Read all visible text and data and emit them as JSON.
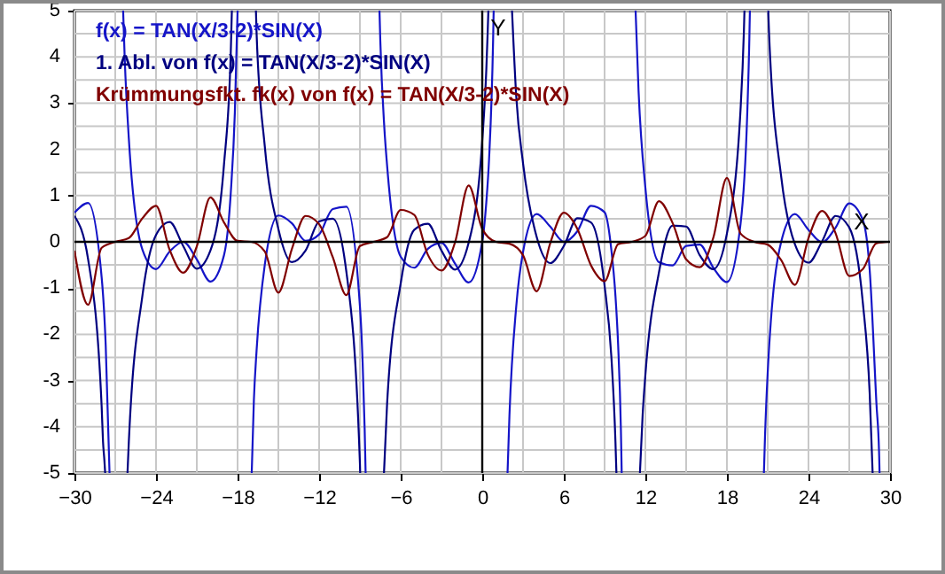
{
  "chart_data": {
    "type": "line",
    "xlabel": "X",
    "ylabel": "Y",
    "xlim": [
      -30,
      30
    ],
    "ylim": [
      -5,
      5
    ],
    "xticks": [
      -30,
      {
        "value": -27,
        "label": null
      },
      -24,
      {
        "value": -21,
        "label": null
      },
      -18,
      {
        "value": -15,
        "label": null
      },
      -12,
      {
        "value": -9,
        "label": null
      },
      -6,
      {
        "value": -3,
        "label": null
      },
      0,
      {
        "value": 3,
        "label": null
      },
      6,
      {
        "value": 9,
        "label": null
      },
      12,
      {
        "value": 15,
        "label": null
      },
      18,
      {
        "value": 21,
        "label": null
      },
      24,
      {
        "value": 27,
        "label": null
      },
      30
    ],
    "yticks": [
      -5,
      {
        "value": -4.5,
        "label": null
      },
      -4,
      {
        "value": -3.5,
        "label": null
      },
      -3,
      {
        "value": -2.5,
        "label": null
      },
      -2,
      {
        "value": -1.5,
        "label": null
      },
      -1,
      {
        "value": -0.5,
        "label": null
      },
      0,
      {
        "value": 0.5,
        "label": null
      },
      1,
      {
        "value": 1.5,
        "label": null
      },
      2,
      {
        "value": 2.5,
        "label": null
      },
      3,
      {
        "value": 3.5,
        "label": null
      },
      4,
      {
        "value": 4.5,
        "label": null
      },
      5
    ],
    "grid": true,
    "legend": "top left",
    "marker": "none",
    "line_style": "solid",
    "series": [
      {
        "name": "f(x) = TAN(X/3-2)*SIN(X)",
        "color": "#1515c8",
        "x": [
          -30,
          -29,
          -28,
          -27.7,
          -27.42,
          -27,
          -26.42,
          -26.3,
          -26,
          -25,
          -24,
          -23,
          -22,
          -21,
          -20,
          -19,
          -18.5,
          -18.2,
          -18,
          -17.5,
          -16.96,
          -16.8,
          -16.6,
          -16,
          -15,
          -14,
          -13,
          -12,
          -11,
          -10,
          -9,
          -8.8,
          -8.65,
          -8.58,
          -8.1,
          -7.56,
          -7.5,
          -7.2,
          -7,
          -6,
          -5,
          -4,
          -3,
          -2,
          -1,
          0,
          0.3,
          0.5,
          0.8,
          0.84,
          1.3,
          1.86,
          2,
          2.5,
          3,
          4,
          5,
          6,
          7,
          8,
          9,
          9.5,
          9.8,
          10,
          10.2,
          10.26,
          10.7,
          11.28,
          11.5,
          12,
          13,
          14,
          15,
          16,
          17,
          18,
          19,
          19.5,
          19.65,
          19.69,
          20.1,
          20.72,
          20.8,
          21,
          22,
          23,
          24,
          25,
          26,
          27,
          28,
          28.5,
          29,
          29.2,
          29.23
        ],
        "values": [
          0.63,
          0.84,
          -0.77,
          -2.25,
          -5,
          null,
          5,
          3.94,
          2.23,
          -0.17,
          -0.59,
          -0.21,
          0,
          -0.38,
          -0.86,
          -0.29,
          1.06,
          2.8,
          5,
          null,
          -5,
          -3.42,
          -2.34,
          -0.5,
          0.57,
          0.4,
          0.02,
          0.16,
          0.71,
          0.76,
          -1.39,
          -2.61,
          -4.06,
          -5,
          null,
          5,
          4.35,
          2.45,
          1.65,
          -0.32,
          -0.56,
          -0.15,
          -0.02,
          -0.47,
          -0.88,
          0,
          0.86,
          1.78,
          4.38,
          5,
          null,
          -5,
          -3.76,
          -1.4,
          -0.22,
          0.6,
          0.33,
          0,
          0.23,
          0.78,
          0.64,
          -0.18,
          -1.17,
          -2.25,
          -4.06,
          -5,
          null,
          5,
          3.26,
          1.17,
          -0.44,
          -0.51,
          -0.09,
          -0.06,
          -0.56,
          -0.87,
          0.38,
          2.81,
          4.39,
          5,
          null,
          -5,
          -4.23,
          -2.83,
          0.01,
          0.6,
          0.26,
          -0.01,
          0.31,
          0.83,
          0.47,
          -0.6,
          -3.5,
          -4.63,
          -5
        ]
      },
      {
        "name": "1. Abl. von f(x) = TAN(X/3-2)*SIN(X)",
        "color": "#000080",
        "x": [
          -30,
          -29,
          -28,
          -27.9,
          -27.8,
          -27.74,
          -27,
          -26.1,
          -26,
          -25,
          -24,
          -23,
          -22,
          -21,
          -20,
          -19,
          -18.5,
          -18.42,
          -17.5,
          -16.65,
          -16.6,
          -16,
          -15,
          -14,
          -13,
          -12,
          -11,
          -10,
          -9,
          -8.98,
          -8.1,
          -7.23,
          -7,
          -6,
          -5,
          -4,
          -3,
          -2,
          -1,
          0,
          0.3,
          0.4,
          0.45,
          1.3,
          2.19,
          2.5,
          3,
          4,
          5,
          6,
          7,
          8,
          9,
          9.5,
          9.8,
          9.87,
          10.7,
          11.6,
          11.8,
          12,
          13,
          14,
          15,
          16,
          17,
          18,
          19,
          19.25,
          19.29,
          20.1,
          21.04,
          21.1,
          22,
          23,
          24,
          25,
          26,
          27,
          28,
          28.5,
          28.72
        ],
        "values": [
          0.56,
          -0.37,
          -3.56,
          -4.32,
          -4.72,
          -5,
          null,
          -5,
          -4.32,
          -1.16,
          0.15,
          0.43,
          -0.09,
          -0.58,
          -0.19,
          1.67,
          4.1,
          5,
          null,
          5,
          4.5,
          2.07,
          0.28,
          -0.44,
          -0.19,
          0.44,
          0.5,
          -0.64,
          -4.79,
          -5,
          null,
          -5,
          -3.5,
          -0.9,
          0.26,
          0.39,
          -0.19,
          -0.6,
          -0.02,
          2.19,
          3.73,
          4.54,
          5,
          null,
          5,
          3.15,
          1.7,
          0.11,
          -0.46,
          -0.09,
          0.51,
          0.42,
          -0.95,
          -2.49,
          -4.33,
          -5,
          null,
          -5,
          -3.74,
          -2.88,
          -0.66,
          0.35,
          0.33,
          -0.29,
          -0.59,
          0.18,
          2.85,
          4.57,
          5,
          null,
          5,
          4.5,
          1.39,
          -0.05,
          -0.45,
          0.01,
          0.56,
          0.31,
          -1.32,
          -3.26,
          -5
        ]
      },
      {
        "name": "Krümmungsfkt. fk(x) von f(x) = TAN(X/3-2)*SIN(X)",
        "color": "#800000",
        "x": [
          -30,
          -29,
          -28,
          -27,
          -26,
          -25,
          -24,
          -23,
          -22,
          -21,
          -20,
          -19,
          -18,
          -17,
          -16,
          -15,
          -14,
          -13,
          -12,
          -11,
          -10,
          -9,
          -8,
          -7,
          -6,
          -5,
          -4,
          -3,
          -2,
          -1,
          0,
          1,
          2,
          3,
          4,
          5,
          6,
          7,
          8,
          9,
          10,
          11,
          12,
          13,
          14,
          15,
          16,
          17,
          18,
          19,
          20,
          21,
          22,
          23,
          24,
          25,
          26,
          27,
          28,
          29,
          30
        ],
        "values": [
          -0.19,
          -1.36,
          -0.13,
          0,
          0.08,
          0.51,
          0.78,
          -0.17,
          -0.67,
          -0.1,
          0.96,
          0.42,
          0.02,
          0,
          -0.21,
          -1.1,
          -0.15,
          0.56,
          0.38,
          -0.33,
          -1.15,
          -0.09,
          0,
          0.1,
          0.69,
          0.58,
          -0.28,
          -0.62,
          -0.01,
          1.22,
          0.28,
          0,
          -0.04,
          -0.29,
          -1.07,
          -0.03,
          0.63,
          0.28,
          -0.51,
          -0.85,
          -0.05,
          0,
          0.13,
          0.88,
          0.41,
          -0.38,
          -0.55,
          0.09,
          1.38,
          0.18,
          0,
          -0.06,
          -0.4,
          -0.93,
          0.08,
          0.67,
          0.18,
          -0.74,
          -0.59,
          -0.03,
          0
        ]
      }
    ]
  }
}
